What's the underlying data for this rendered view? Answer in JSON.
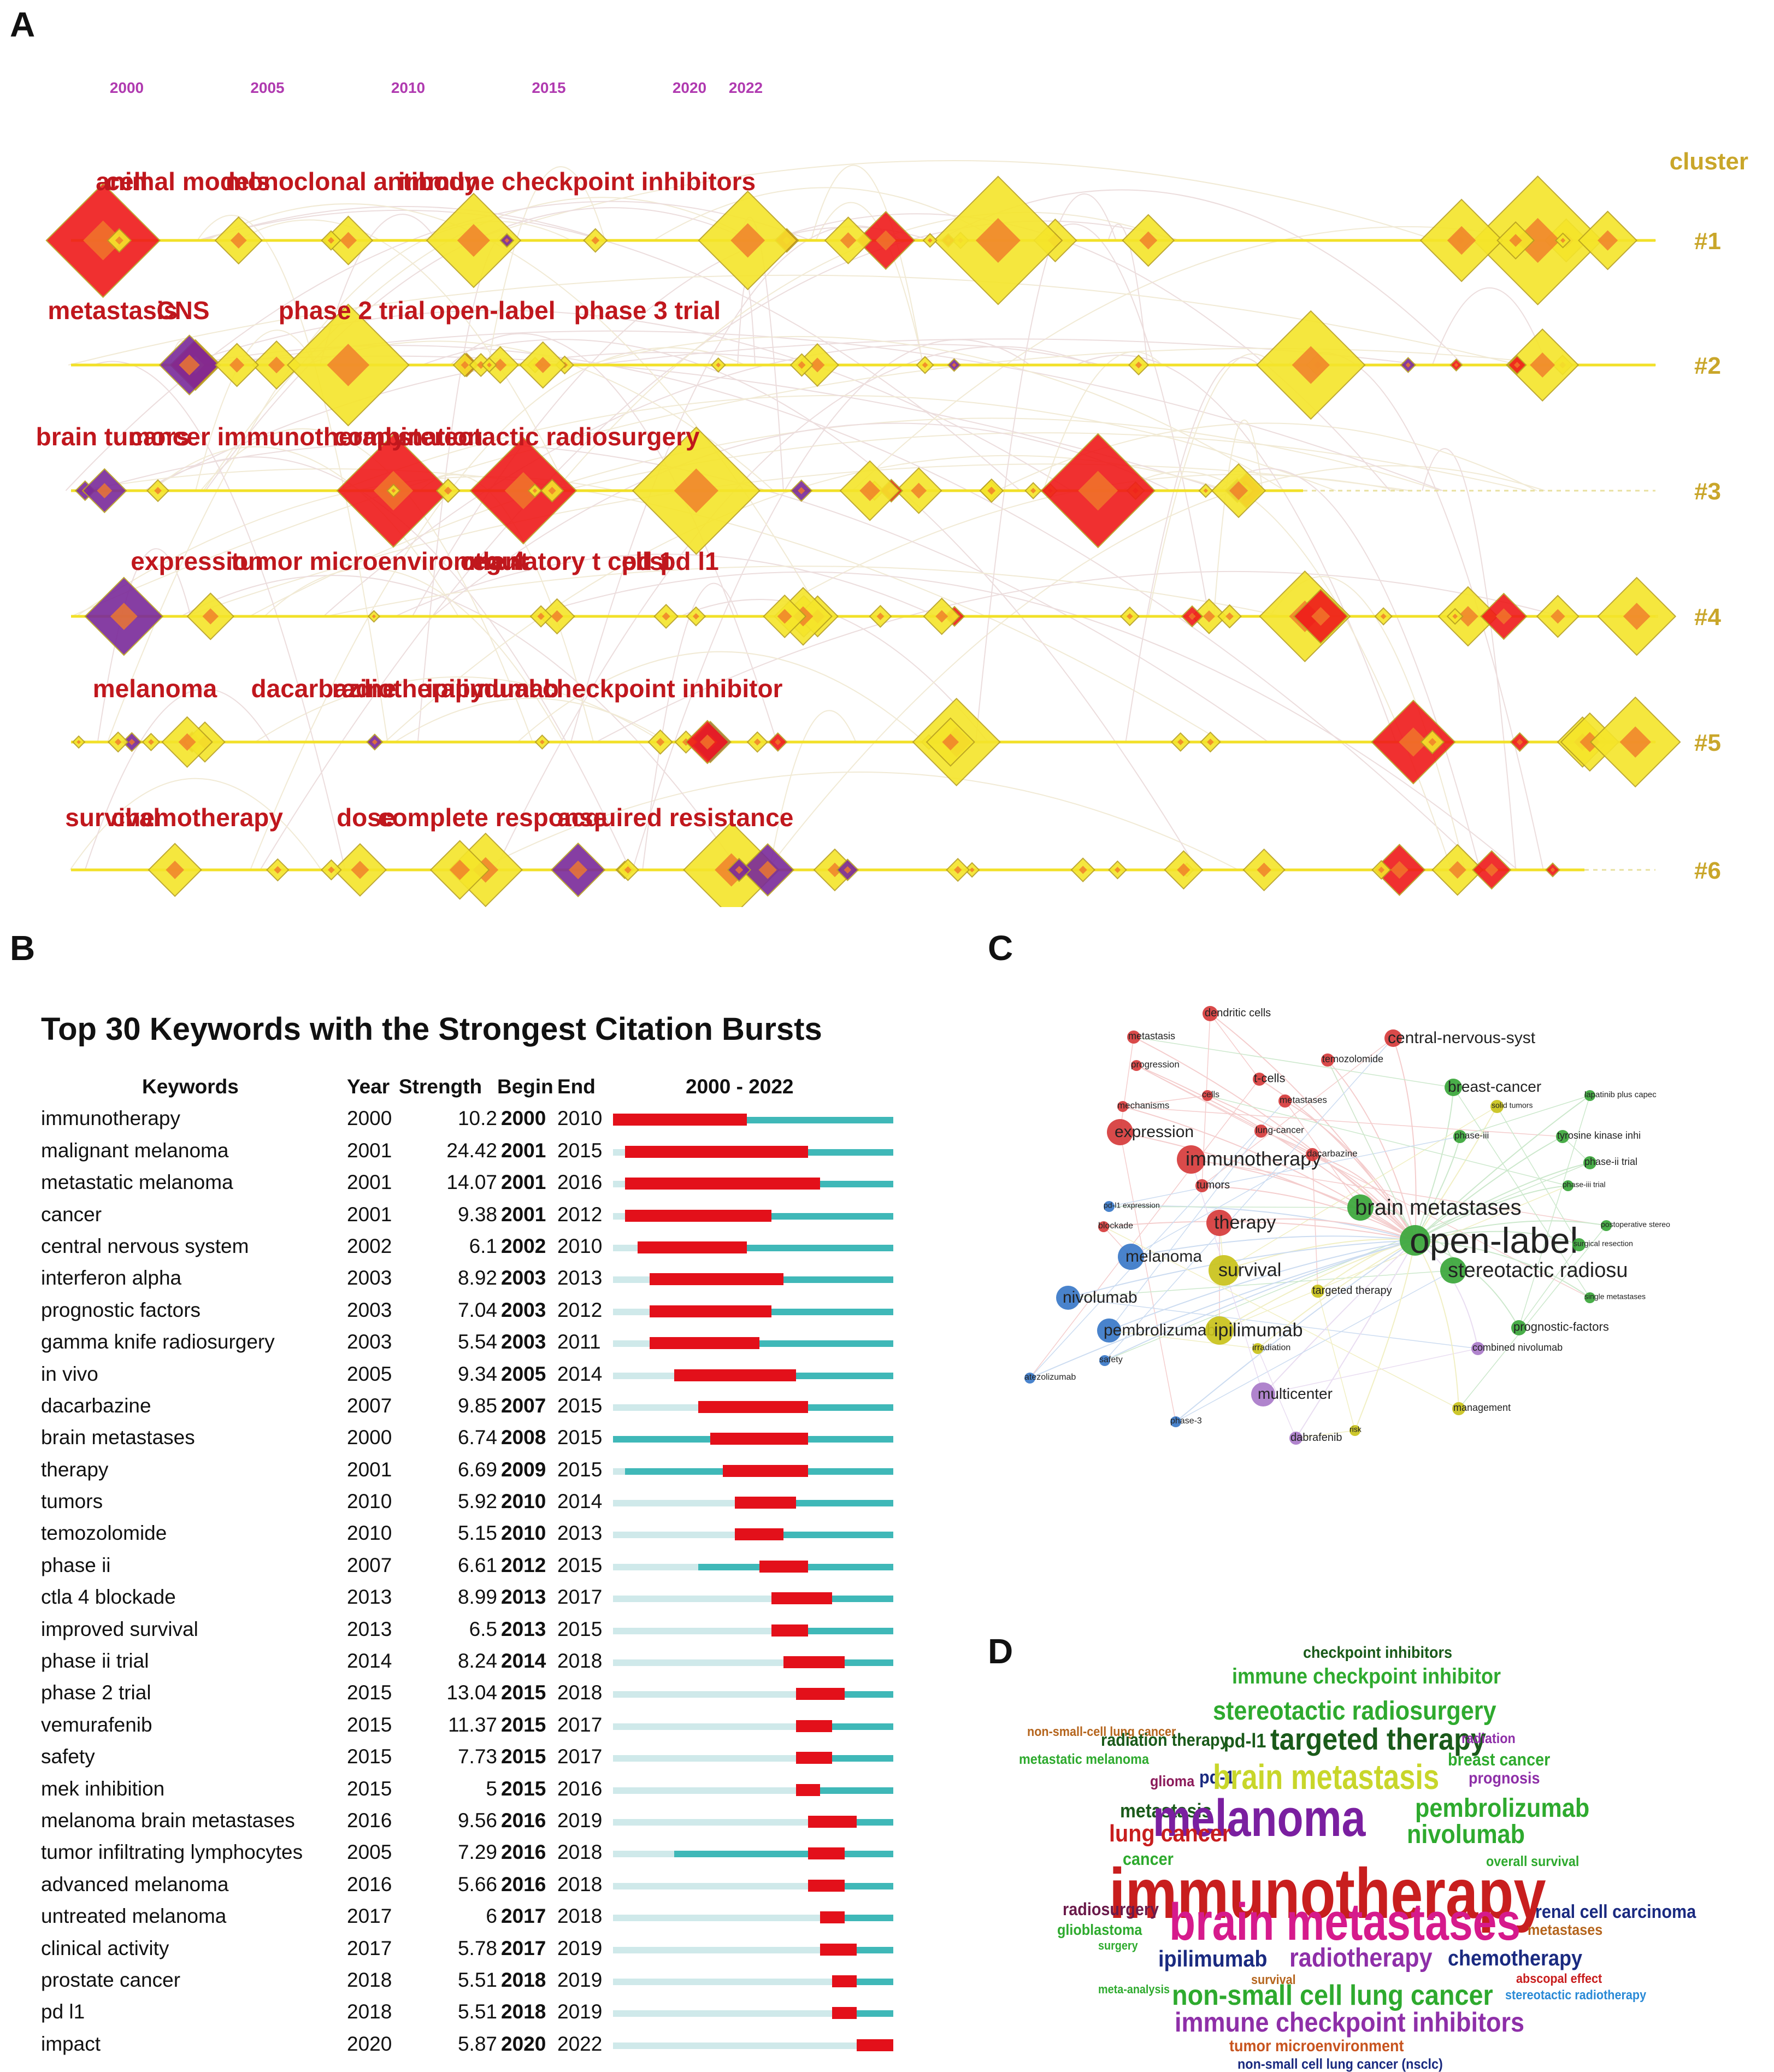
{
  "panel_labels": {
    "a": "A",
    "b": "B",
    "c": "C",
    "d": "D"
  },
  "chart_data": [
    {
      "type": "timeline",
      "panel": "A",
      "years": [
        "2000",
        "2005",
        "2010",
        "2015",
        "2020",
        "2022"
      ],
      "cluster_header": "cluster",
      "clusters": [
        {
          "id": "#1",
          "labels": [
            [
              "cell",
              2000
            ],
            [
              "animal models",
              2002
            ],
            [
              "monoclonal antibody",
              2008
            ],
            [
              "immune checkpoint inhibitors",
              2016
            ]
          ]
        },
        {
          "id": "#2",
          "labels": [
            [
              "metastasis",
              1999.5
            ],
            [
              "CNS",
              2002
            ],
            [
              "phase 2 trial",
              2008
            ],
            [
              "open-label",
              2013
            ],
            [
              "phase 3 trial",
              2018.5
            ]
          ]
        },
        {
          "id": "#3",
          "labels": [
            [
              "brain tumors",
              1999.5
            ],
            [
              "cancer immunotherapy",
              2005
            ],
            [
              "combination",
              2010
            ],
            [
              "stereotactic radiosurgery",
              2015
            ]
          ]
        },
        {
          "id": "#4",
          "labels": [
            [
              "expression",
              2002.5
            ],
            [
              "tumor microenvironment",
              2009
            ],
            [
              "ctla 4",
              2013
            ],
            [
              "regulatory t cells",
              2015.5
            ],
            [
              "pd 1",
              2018.5
            ],
            [
              "pd l1",
              2020
            ]
          ]
        },
        {
          "id": "#5",
          "labels": [
            [
              "melanoma",
              2001
            ],
            [
              "dacarbazine",
              2007
            ],
            [
              "radiotherapy",
              2010
            ],
            [
              "ipilimumab",
              2013
            ],
            [
              "dual checkpoint inhibitor",
              2018
            ]
          ]
        },
        {
          "id": "#6",
          "labels": [
            [
              "survival",
              1999.5
            ],
            [
              "chemotherapy",
              2002.5
            ],
            [
              "dose",
              2008.5
            ],
            [
              "complete response",
              2013
            ],
            [
              "acquired resistance",
              2019.5
            ]
          ]
        }
      ]
    },
    {
      "type": "table",
      "panel": "B",
      "title": "Top 30 Keywords with the Strongest Citation Bursts",
      "columns": [
        "Keywords",
        "Year",
        "Strength",
        "Begin",
        "End",
        "2000 - 2022"
      ],
      "range": [
        2000,
        2022
      ],
      "rows": [
        [
          "immunotherapy",
          "2000",
          "10.2",
          "2000",
          "2010"
        ],
        [
          "malignant melanoma",
          "2001",
          "24.42",
          "2001",
          "2015"
        ],
        [
          "metastatic melanoma",
          "2001",
          "14.07",
          "2001",
          "2016"
        ],
        [
          "cancer",
          "2001",
          "9.38",
          "2001",
          "2012"
        ],
        [
          "central nervous system",
          "2002",
          "6.1",
          "2002",
          "2010"
        ],
        [
          "interferon alpha",
          "2003",
          "8.92",
          "2003",
          "2013"
        ],
        [
          "prognostic factors",
          "2003",
          "7.04",
          "2003",
          "2012"
        ],
        [
          "gamma knife radiosurgery",
          "2003",
          "5.54",
          "2003",
          "2011"
        ],
        [
          "in vivo",
          "2005",
          "9.34",
          "2005",
          "2014"
        ],
        [
          "dacarbazine",
          "2007",
          "9.85",
          "2007",
          "2015"
        ],
        [
          "brain metastases",
          "2000",
          "6.74",
          "2008",
          "2015"
        ],
        [
          "therapy",
          "2001",
          "6.69",
          "2009",
          "2015"
        ],
        [
          "tumors",
          "2010",
          "5.92",
          "2010",
          "2014"
        ],
        [
          "temozolomide",
          "2010",
          "5.15",
          "2010",
          "2013"
        ],
        [
          "phase ii",
          "2007",
          "6.61",
          "2012",
          "2015"
        ],
        [
          "ctla 4 blockade",
          "2013",
          "8.99",
          "2013",
          "2017"
        ],
        [
          "improved survival",
          "2013",
          "6.5",
          "2013",
          "2015"
        ],
        [
          "phase ii trial",
          "2014",
          "8.24",
          "2014",
          "2018"
        ],
        [
          "phase 2 trial",
          "2015",
          "13.04",
          "2015",
          "2018"
        ],
        [
          "vemurafenib",
          "2015",
          "11.37",
          "2015",
          "2017"
        ],
        [
          "safety",
          "2015",
          "7.73",
          "2015",
          "2017"
        ],
        [
          "mek inhibition",
          "2015",
          "5",
          "2015",
          "2016"
        ],
        [
          "melanoma brain metastases",
          "2016",
          "9.56",
          "2016",
          "2019"
        ],
        [
          "tumor infiltrating lymphocytes",
          "2005",
          "7.29",
          "2016",
          "2018"
        ],
        [
          "advanced melanoma",
          "2016",
          "5.66",
          "2016",
          "2018"
        ],
        [
          "untreated melanoma",
          "2017",
          "6",
          "2017",
          "2018"
        ],
        [
          "clinical activity",
          "2017",
          "5.78",
          "2017",
          "2019"
        ],
        [
          "prostate cancer",
          "2018",
          "5.51",
          "2018",
          "2019"
        ],
        [
          "pd l1",
          "2018",
          "5.51",
          "2018",
          "2019"
        ],
        [
          "impact",
          "2020",
          "5.87",
          "2020",
          "2022"
        ]
      ]
    },
    {
      "type": "network",
      "panel": "C",
      "nodes": [
        {
          "label": "dendritic cells",
          "cluster": "red"
        },
        {
          "label": "metastasis",
          "cluster": "red"
        },
        {
          "label": "central-nervous-syst",
          "cluster": "red"
        },
        {
          "label": "temozolomide",
          "cluster": "red"
        },
        {
          "label": "progression",
          "cluster": "red"
        },
        {
          "label": "t-cells",
          "cluster": "red"
        },
        {
          "label": "breast-cancer",
          "cluster": "green"
        },
        {
          "label": "cells",
          "cluster": "red"
        },
        {
          "label": "mechanisms",
          "cluster": "red"
        },
        {
          "label": "metastases",
          "cluster": "red"
        },
        {
          "label": "solid tumors",
          "cluster": "yellow"
        },
        {
          "label": "lapatinib plus capec",
          "cluster": "green"
        },
        {
          "label": "expression",
          "cluster": "red"
        },
        {
          "label": "lung-cancer",
          "cluster": "red"
        },
        {
          "label": "phase-iii",
          "cluster": "green"
        },
        {
          "label": "tyrosine kinase inhi",
          "cluster": "green"
        },
        {
          "label": "immunotherapy",
          "cluster": "red"
        },
        {
          "label": "dacarbazine",
          "cluster": "red"
        },
        {
          "label": "phase-ii trial",
          "cluster": "green"
        },
        {
          "label": "tumors",
          "cluster": "red"
        },
        {
          "label": "phase-iii trial",
          "cluster": "green"
        },
        {
          "label": "pd-l1 expression",
          "cluster": "blue"
        },
        {
          "label": "brain metastases",
          "cluster": "green"
        },
        {
          "label": "blockade",
          "cluster": "red"
        },
        {
          "label": "therapy",
          "cluster": "red"
        },
        {
          "label": "postoperative stereo",
          "cluster": "green"
        },
        {
          "label": "open-label",
          "cluster": "green"
        },
        {
          "label": "surgical resection",
          "cluster": "green"
        },
        {
          "label": "melanoma",
          "cluster": "blue"
        },
        {
          "label": "survival",
          "cluster": "yellow"
        },
        {
          "label": "stereotactic radiosu",
          "cluster": "green"
        },
        {
          "label": "nivolumab",
          "cluster": "blue"
        },
        {
          "label": "targeted therapy",
          "cluster": "yellow"
        },
        {
          "label": "single metastases",
          "cluster": "green"
        },
        {
          "label": "pembrolizumab",
          "cluster": "blue"
        },
        {
          "label": "ipilimumab",
          "cluster": "yellow"
        },
        {
          "label": "prognostic-factors",
          "cluster": "green"
        },
        {
          "label": "irradiation",
          "cluster": "yellow"
        },
        {
          "label": "combined nivolumab",
          "cluster": "purple"
        },
        {
          "label": "safety",
          "cluster": "blue"
        },
        {
          "label": "atezolizumab",
          "cluster": "blue"
        },
        {
          "label": "multicenter",
          "cluster": "purple"
        },
        {
          "label": "management",
          "cluster": "yellow"
        },
        {
          "label": "phase-3",
          "cluster": "blue"
        },
        {
          "label": "dabrafenib",
          "cluster": "purple"
        },
        {
          "label": "risk",
          "cluster": "yellow"
        }
      ]
    },
    {
      "type": "wordcloud",
      "panel": "D",
      "words": [
        {
          "text": "checkpoint inhibitors",
          "color": "#1a5a1a"
        },
        {
          "text": "immune checkpoint inhibitor",
          "color": "#2eaa2e"
        },
        {
          "text": "stereotactic radiosurgery",
          "color": "#2eaa2e"
        },
        {
          "text": "non-small-cell lung cancer",
          "color": "#b5651d"
        },
        {
          "text": "radiation therapy",
          "color": "#1a5a1a"
        },
        {
          "text": "pd-l1",
          "color": "#1a5a1a"
        },
        {
          "text": "targeted therapy",
          "color": "#1a5a1a"
        },
        {
          "text": "radiation",
          "color": "#8e2fa8"
        },
        {
          "text": "metastatic melanoma",
          "color": "#2eaa2e"
        },
        {
          "text": "glioma",
          "color": "#8b1a5a"
        },
        {
          "text": "pd-1",
          "color": "#1a2a80"
        },
        {
          "text": "brain metastasis",
          "color": "#c8d62a"
        },
        {
          "text": "breast cancer",
          "color": "#2eaa2e"
        },
        {
          "text": "prognosis",
          "color": "#8e2fa8"
        },
        {
          "text": "metastasis",
          "color": "#1a5a1a"
        },
        {
          "text": "melanoma",
          "color": "#7a1fa0"
        },
        {
          "text": "pembrolizumab",
          "color": "#2eaa2e"
        },
        {
          "text": "lung cancer",
          "color": "#c81e1e"
        },
        {
          "text": "nivolumab",
          "color": "#2eaa2e"
        },
        {
          "text": "cancer",
          "color": "#2eaa2e"
        },
        {
          "text": "overall survival",
          "color": "#2eaa2e"
        },
        {
          "text": "immunotherapy",
          "color": "#c81e1e"
        },
        {
          "text": "radiosurgery",
          "color": "#6a1a4a"
        },
        {
          "text": "brain metastases",
          "color": "#d61a8c"
        },
        {
          "text": "renal cell carcinoma",
          "color": "#1a2a80"
        },
        {
          "text": "glioblastoma",
          "color": "#2eaa2e"
        },
        {
          "text": "surgery",
          "color": "#2eaa2e"
        },
        {
          "text": "metastases",
          "color": "#b5651d"
        },
        {
          "text": "ipilimumab",
          "color": "#1a2a80"
        },
        {
          "text": "radiotherapy",
          "color": "#8e2fa8"
        },
        {
          "text": "chemotherapy",
          "color": "#1a2a80"
        },
        {
          "text": "survival",
          "color": "#b5651d"
        },
        {
          "text": "abscopal effect",
          "color": "#c81e1e"
        },
        {
          "text": "meta-analysis",
          "color": "#2eaa2e"
        },
        {
          "text": "non-small cell lung cancer",
          "color": "#2eaa2e"
        },
        {
          "text": "stereotactic radiotherapy",
          "color": "#2a8ad6"
        },
        {
          "text": "immune checkpoint inhibitors",
          "color": "#8e2fa8"
        },
        {
          "text": "tumor microenvironment",
          "color": "#c8541e"
        },
        {
          "text": "non-small cell lung cancer (nsclc)",
          "color": "#1a2a80"
        }
      ]
    }
  ]
}
